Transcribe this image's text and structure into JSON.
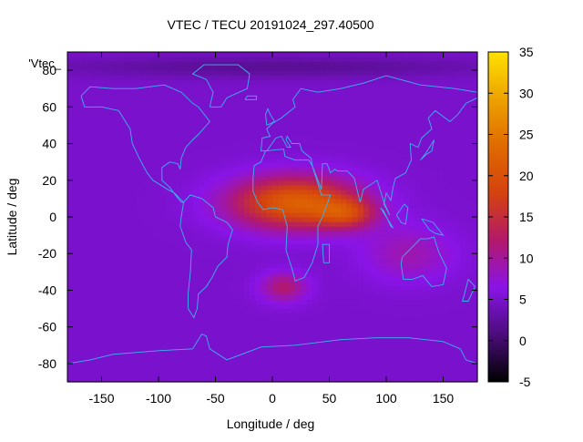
{
  "chart_data": {
    "type": "heatmap",
    "title": "VTEC / TECU 20191024_297.40500",
    "xlabel": "Longitude / deg",
    "ylabel": "Latitude / deg",
    "series_key": "'Vtec_",
    "xlim": [
      -180,
      180
    ],
    "ylim": [
      -90,
      90
    ],
    "x_ticks": [
      -150,
      -100,
      -50,
      0,
      50,
      100,
      150
    ],
    "y_ticks": [
      -80,
      -60,
      -40,
      -20,
      0,
      20,
      40,
      60,
      80
    ],
    "colorbar": {
      "range": [
        -5,
        35
      ],
      "ticks": [
        -5,
        0,
        5,
        10,
        15,
        20,
        25,
        30,
        35
      ],
      "palette": [
        "#000000",
        "#4b0d7a",
        "#8a14e8",
        "#b3196b",
        "#d4420f",
        "#e06a00",
        "#eda200",
        "#ffe100"
      ]
    },
    "field": {
      "background_tecu": 5,
      "features": [
        {
          "lon": 20,
          "lat": 8,
          "sigma_lon": 55,
          "sigma_lat": 14,
          "peak_tecu": 17
        },
        {
          "lon": 65,
          "lat": 2,
          "sigma_lon": 25,
          "sigma_lat": 8,
          "peak_tecu": 9
        },
        {
          "lon": 10,
          "lat": -38,
          "sigma_lon": 20,
          "sigma_lat": 8,
          "peak_tecu": 7
        },
        {
          "lon": 120,
          "lat": -20,
          "sigma_lon": 40,
          "sigma_lat": 15,
          "peak_tecu": 4
        },
        {
          "lon": 0,
          "lat": 82,
          "sigma_lon": 200,
          "sigma_lat": 6,
          "peak_tecu": -3
        }
      ]
    },
    "coastlines": [
      {
        "name": "north-america",
        "points": [
          [
            -168,
            66
          ],
          [
            -160,
            71
          ],
          [
            -140,
            70
          ],
          [
            -120,
            70
          ],
          [
            -95,
            72
          ],
          [
            -80,
            68
          ],
          [
            -70,
            62
          ],
          [
            -65,
            60
          ],
          [
            -55,
            52
          ],
          [
            -65,
            45
          ],
          [
            -70,
            42
          ],
          [
            -76,
            38
          ],
          [
            -80,
            32
          ],
          [
            -81,
            26
          ],
          [
            -83,
            29
          ],
          [
            -90,
            30
          ],
          [
            -97,
            27
          ],
          [
            -97,
            20
          ],
          [
            -90,
            16
          ],
          [
            -84,
            11
          ],
          [
            -80,
            8
          ],
          [
            -78,
            8
          ],
          [
            -86,
            13
          ],
          [
            -92,
            15
          ],
          [
            -105,
            20
          ],
          [
            -110,
            24
          ],
          [
            -117,
            32
          ],
          [
            -123,
            40
          ],
          [
            -125,
            48
          ],
          [
            -135,
            58
          ],
          [
            -150,
            60
          ],
          [
            -165,
            60
          ],
          [
            -168,
            66
          ]
        ]
      },
      {
        "name": "greenland",
        "points": [
          [
            -55,
            60
          ],
          [
            -45,
            60
          ],
          [
            -40,
            65
          ],
          [
            -22,
            70
          ],
          [
            -20,
            78
          ],
          [
            -30,
            83
          ],
          [
            -60,
            83
          ],
          [
            -70,
            78
          ],
          [
            -58,
            75
          ],
          [
            -52,
            68
          ],
          [
            -55,
            60
          ]
        ]
      },
      {
        "name": "south-america",
        "points": [
          [
            -78,
            8
          ],
          [
            -72,
            12
          ],
          [
            -62,
            10
          ],
          [
            -52,
            5
          ],
          [
            -50,
            0
          ],
          [
            -40,
            -3
          ],
          [
            -35,
            -7
          ],
          [
            -39,
            -15
          ],
          [
            -40,
            -22
          ],
          [
            -48,
            -27
          ],
          [
            -53,
            -33
          ],
          [
            -58,
            -38
          ],
          [
            -65,
            -42
          ],
          [
            -66,
            -50
          ],
          [
            -69,
            -55
          ],
          [
            -74,
            -50
          ],
          [
            -74,
            -42
          ],
          [
            -72,
            -30
          ],
          [
            -71,
            -18
          ],
          [
            -76,
            -14
          ],
          [
            -81,
            -5
          ],
          [
            -80,
            0
          ],
          [
            -78,
            8
          ]
        ]
      },
      {
        "name": "eurasia",
        "points": [
          [
            -10,
            36
          ],
          [
            -9,
            43
          ],
          [
            -2,
            44
          ],
          [
            -5,
            48
          ],
          [
            0,
            51
          ],
          [
            8,
            54
          ],
          [
            12,
            56
          ],
          [
            20,
            60
          ],
          [
            18,
            64
          ],
          [
            25,
            70
          ],
          [
            40,
            68
          ],
          [
            60,
            70
          ],
          [
            80,
            73
          ],
          [
            100,
            77
          ],
          [
            130,
            72
          ],
          [
            160,
            70
          ],
          [
            180,
            68
          ],
          [
            180,
            65
          ],
          [
            170,
            62
          ],
          [
            163,
            56
          ],
          [
            156,
            52
          ],
          [
            143,
            58
          ],
          [
            137,
            54
          ],
          [
            140,
            48
          ],
          [
            131,
            43
          ],
          [
            128,
            38
          ],
          [
            121,
            40
          ],
          [
            122,
            31
          ],
          [
            117,
            24
          ],
          [
            108,
            21
          ],
          [
            106,
            16
          ],
          [
            104,
            9
          ],
          [
            100,
            13
          ],
          [
            98,
            7
          ],
          [
            103,
            1
          ],
          [
            98,
            8
          ],
          [
            92,
            20
          ],
          [
            80,
            15
          ],
          [
            77,
            8
          ],
          [
            72,
            21
          ],
          [
            66,
            25
          ],
          [
            57,
            25
          ],
          [
            55,
            26
          ],
          [
            51,
            24
          ],
          [
            48,
            29
          ],
          [
            44,
            29
          ],
          [
            43,
            15
          ],
          [
            35,
            28
          ],
          [
            34,
            32
          ],
          [
            26,
            36
          ],
          [
            24,
            40
          ],
          [
            17,
            40
          ],
          [
            13,
            44
          ],
          [
            12,
            42
          ],
          [
            16,
            38
          ],
          [
            13,
            38
          ],
          [
            8,
            44
          ],
          [
            3,
            43
          ],
          [
            -5,
            36
          ],
          [
            -10,
            36
          ]
        ]
      },
      {
        "name": "africa",
        "points": [
          [
            -17,
            21
          ],
          [
            -16,
            28
          ],
          [
            -10,
            30
          ],
          [
            -6,
            36
          ],
          [
            10,
            37
          ],
          [
            11,
            33
          ],
          [
            20,
            31
          ],
          [
            32,
            31
          ],
          [
            35,
            28
          ],
          [
            43,
            12
          ],
          [
            51,
            12
          ],
          [
            44,
            0
          ],
          [
            40,
            -5
          ],
          [
            40,
            -15
          ],
          [
            35,
            -25
          ],
          [
            28,
            -33
          ],
          [
            20,
            -35
          ],
          [
            18,
            -30
          ],
          [
            12,
            -18
          ],
          [
            13,
            -5
          ],
          [
            9,
            4
          ],
          [
            0,
            5
          ],
          [
            -8,
            4
          ],
          [
            -13,
            8
          ],
          [
            -17,
            14
          ],
          [
            -17,
            21
          ]
        ]
      },
      {
        "name": "madagascar",
        "points": [
          [
            44,
            -15
          ],
          [
            50,
            -15
          ],
          [
            50,
            -25
          ],
          [
            45,
            -25
          ],
          [
            44,
            -15
          ]
        ]
      },
      {
        "name": "australia",
        "points": [
          [
            114,
            -22
          ],
          [
            113,
            -26
          ],
          [
            115,
            -34
          ],
          [
            123,
            -34
          ],
          [
            132,
            -32
          ],
          [
            140,
            -38
          ],
          [
            150,
            -37
          ],
          [
            153,
            -28
          ],
          [
            146,
            -19
          ],
          [
            142,
            -11
          ],
          [
            136,
            -12
          ],
          [
            130,
            -12
          ],
          [
            122,
            -17
          ],
          [
            114,
            -22
          ]
        ]
      },
      {
        "name": "new-zealand",
        "points": [
          [
            172,
            -34
          ],
          [
            178,
            -38
          ],
          [
            172,
            -46
          ],
          [
            167,
            -46
          ],
          [
            172,
            -34
          ]
        ]
      },
      {
        "name": "antarctica",
        "points": [
          [
            -180,
            -80
          ],
          [
            -160,
            -78
          ],
          [
            -140,
            -75
          ],
          [
            -100,
            -73
          ],
          [
            -70,
            -72
          ],
          [
            -62,
            -64
          ],
          [
            -58,
            -65
          ],
          [
            -55,
            -72
          ],
          [
            -40,
            -78
          ],
          [
            -10,
            -71
          ],
          [
            20,
            -70
          ],
          [
            60,
            -67
          ],
          [
            90,
            -66
          ],
          [
            120,
            -66
          ],
          [
            150,
            -68
          ],
          [
            165,
            -72
          ],
          [
            170,
            -78
          ],
          [
            180,
            -80
          ]
        ]
      },
      {
        "name": "british-isles",
        "points": [
          [
            -5,
            50
          ],
          [
            2,
            52
          ],
          [
            -2,
            56
          ],
          [
            -4,
            59
          ],
          [
            -6,
            56
          ],
          [
            -5,
            50
          ]
        ]
      },
      {
        "name": "japan",
        "points": [
          [
            130,
            31
          ],
          [
            135,
            34
          ],
          [
            140,
            36
          ],
          [
            142,
            42
          ],
          [
            140,
            40
          ],
          [
            135,
            35
          ],
          [
            130,
            31
          ]
        ]
      },
      {
        "name": "borneo",
        "points": [
          [
            109,
            1
          ],
          [
            113,
            -3
          ],
          [
            117,
            -4
          ],
          [
            119,
            5
          ],
          [
            116,
            7
          ],
          [
            109,
            1
          ]
        ]
      },
      {
        "name": "sumatra",
        "points": [
          [
            95,
            5
          ],
          [
            100,
            0
          ],
          [
            106,
            -6
          ],
          [
            104,
            -5
          ],
          [
            98,
            3
          ],
          [
            95,
            5
          ]
        ]
      },
      {
        "name": "new-guinea",
        "points": [
          [
            131,
            -1
          ],
          [
            141,
            -3
          ],
          [
            150,
            -10
          ],
          [
            143,
            -9
          ],
          [
            138,
            -7
          ],
          [
            131,
            -1
          ]
        ]
      },
      {
        "name": "iceland",
        "points": [
          [
            -24,
            64
          ],
          [
            -14,
            64
          ],
          [
            -14,
            66
          ],
          [
            -22,
            66
          ],
          [
            -24,
            64
          ]
        ]
      }
    ]
  }
}
